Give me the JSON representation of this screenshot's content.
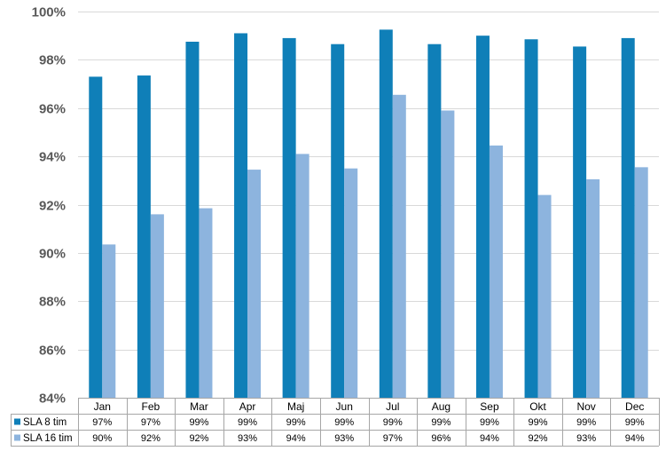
{
  "chart_data": {
    "type": "bar",
    "categories": [
      "Jan",
      "Feb",
      "Mar",
      "Apr",
      "Maj",
      "Jun",
      "Jul",
      "Aug",
      "Sep",
      "Okt",
      "Nov",
      "Dec"
    ],
    "series": [
      {
        "name": "SLA 8 tim",
        "color": "#0f7fb8",
        "values": [
          97.3,
          97.35,
          98.75,
          99.1,
          98.9,
          98.65,
          99.25,
          98.65,
          99.0,
          98.85,
          98.55,
          98.9
        ],
        "table_labels": [
          "97%",
          "97%",
          "99%",
          "99%",
          "99%",
          "99%",
          "99%",
          "99%",
          "99%",
          "99%",
          "99%",
          "99%"
        ]
      },
      {
        "name": "SLA 16 tim",
        "color": "#8db4de",
        "values": [
          90.35,
          91.6,
          91.85,
          93.45,
          94.1,
          93.5,
          96.55,
          95.9,
          94.45,
          92.4,
          93.05,
          93.55
        ],
        "table_labels": [
          "90%",
          "92%",
          "92%",
          "93%",
          "94%",
          "93%",
          "97%",
          "96%",
          "94%",
          "92%",
          "93%",
          "94%"
        ]
      }
    ],
    "ylim": [
      84,
      100
    ],
    "yticks": [
      84,
      86,
      88,
      90,
      92,
      94,
      96,
      98,
      100
    ],
    "ytick_labels": [
      "84%",
      "86%",
      "88%",
      "90%",
      "92%",
      "94%",
      "96%",
      "98%",
      "100%"
    ],
    "title": "",
    "xlabel": "",
    "ylabel": "",
    "grid": true,
    "legend": "data-table",
    "gridline_color": "#d9d9d9"
  }
}
